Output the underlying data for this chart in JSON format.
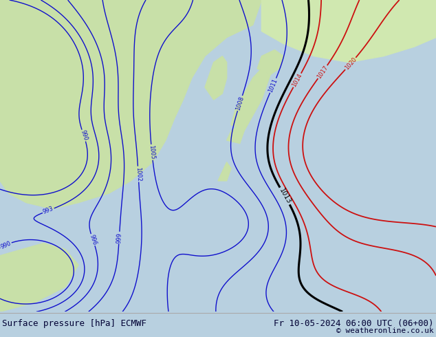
{
  "title_left": "Surface pressure [hPa] ECMWF",
  "title_right": "Fr 10-05-2024 06:00 UTC (06+00)",
  "copyright": "© weatheronline.co.uk",
  "ocean_color": "#b8d0e0",
  "land_color": "#c8e0a8",
  "land_color2": "#d0e8b0",
  "footer_bg": "#ffffff",
  "footer_text_color": "#000033",
  "figsize": [
    6.34,
    4.9
  ],
  "dpi": 100
}
